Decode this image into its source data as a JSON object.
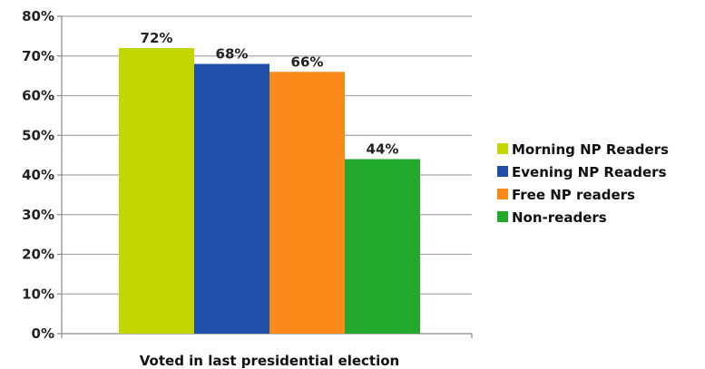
{
  "chart_data": {
    "type": "bar",
    "categories": [
      "Voted in last presidential election"
    ],
    "series": [
      {
        "name": "Morning NP Readers",
        "values": [
          72
        ],
        "label": "72%",
        "color": "#c3d600"
      },
      {
        "name": "Evening NP Readers",
        "values": [
          68
        ],
        "label": "68%",
        "color": "#1f4fa8"
      },
      {
        "name": "Free NP readers",
        "values": [
          66
        ],
        "label": "66%",
        "color": "#f98a19"
      },
      {
        "name": "Non-readers",
        "values": [
          44
        ],
        "label": "44%",
        "color": "#22a82b"
      }
    ],
    "y_ticks": [
      "0%",
      "10%",
      "20%",
      "30%",
      "40%",
      "50%",
      "60%",
      "70%",
      "80%"
    ],
    "ylim": [
      0,
      80
    ],
    "grid": true,
    "legend_position": "right",
    "title": "",
    "xlabel": "",
    "ylabel": ""
  }
}
